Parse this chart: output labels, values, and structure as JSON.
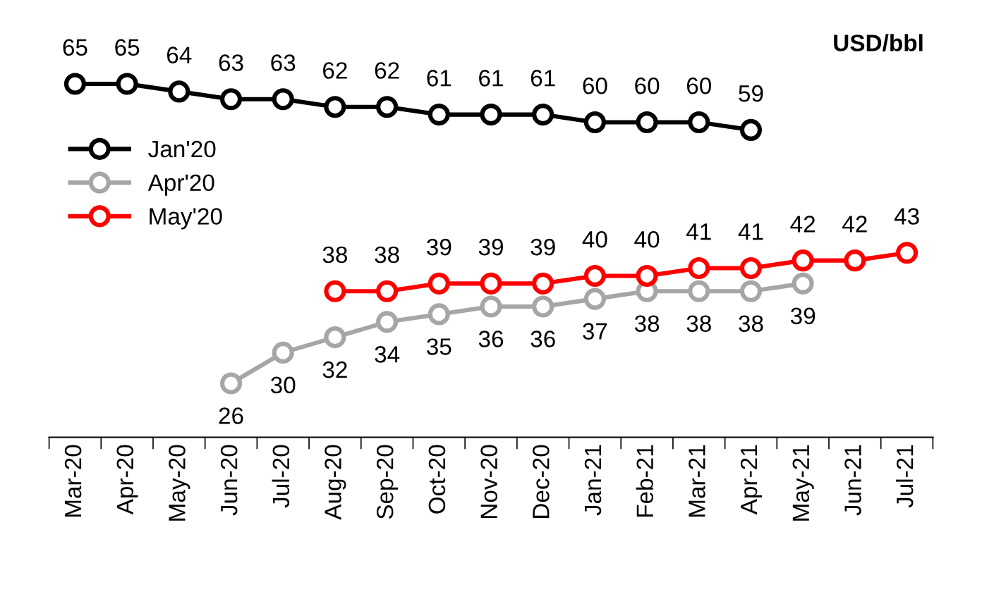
{
  "chart_data": {
    "type": "line",
    "categories": [
      "Mar-20",
      "Apr-20",
      "May-20",
      "Jun-20",
      "Jul-20",
      "Aug-20",
      "Sep-20",
      "Oct-20",
      "Nov-20",
      "Dec-20",
      "Jan-21",
      "Feb-21",
      "Mar-21",
      "Apr-21",
      "May-21",
      "Jun-21",
      "Jul-21"
    ],
    "series": [
      {
        "name": "Jan'20",
        "color": "#000000",
        "values": [
          65,
          65,
          64,
          63,
          63,
          62,
          62,
          61,
          61,
          61,
          60,
          60,
          60,
          59,
          null,
          null,
          null
        ]
      },
      {
        "name": "Apr'20",
        "color": "#a6a6a6",
        "values": [
          null,
          null,
          null,
          26,
          30,
          32,
          34,
          35,
          36,
          36,
          37,
          38,
          38,
          38,
          39,
          null,
          null
        ]
      },
      {
        "name": "May'20",
        "color": "#ff0000",
        "values": [
          null,
          null,
          null,
          null,
          null,
          38,
          38,
          39,
          39,
          39,
          40,
          40,
          41,
          41,
          42,
          42,
          43
        ]
      }
    ],
    "annotations": [
      "USD/bbl"
    ],
    "data_labels": true,
    "marker": "circle",
    "line_style": "solid",
    "legend": "left",
    "grid": false,
    "tick_labels": "x"
  }
}
